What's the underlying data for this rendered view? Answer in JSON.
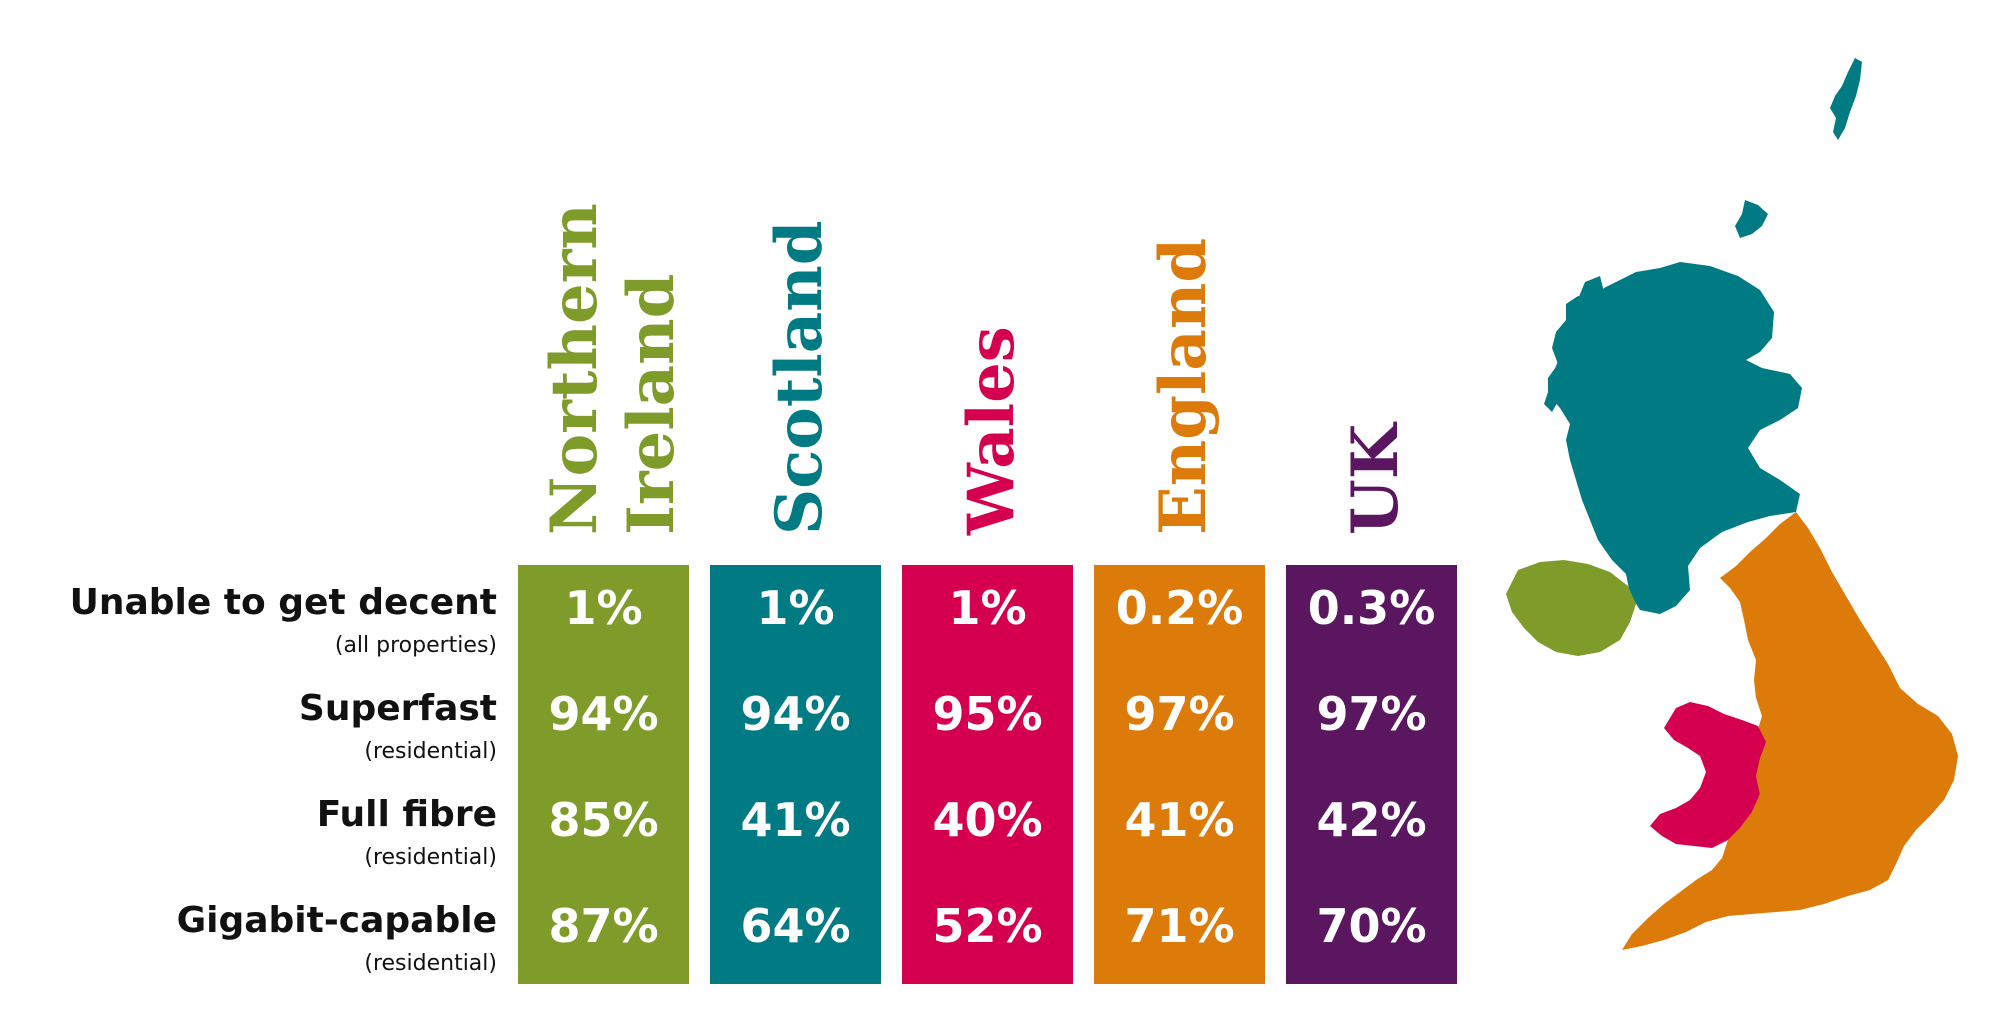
{
  "colors": {
    "northern_ireland": "#7f9c2a",
    "scotland": "#007a83",
    "wales": "#d4004f",
    "england": "#dd7b0a",
    "uk": "#5b1660"
  },
  "chart_data": {
    "type": "table",
    "columns": [
      "Northern Ireland",
      "Scotland",
      "Wales",
      "England",
      "UK"
    ],
    "rows": [
      {
        "label": "Unable to get decent",
        "sublabel": "(all properties)",
        "values": [
          "1%",
          "1%",
          "1%",
          "0.2%",
          "0.3%"
        ]
      },
      {
        "label": "Superfast",
        "sublabel": "(residential)",
        "values": [
          "94%",
          "94%",
          "95%",
          "97%",
          "97%"
        ]
      },
      {
        "label": "Full fibre",
        "sublabel": "(residential)",
        "values": [
          "85%",
          "41%",
          "40%",
          "41%",
          "42%"
        ]
      },
      {
        "label": "Gigabit-capable",
        "sublabel": "(residential)",
        "values": [
          "87%",
          "64%",
          "52%",
          "71%",
          "70%"
        ]
      }
    ]
  },
  "headers": {
    "northern_ireland_line1": "Northern",
    "northern_ireland_line2": "Ireland",
    "scotland": "Scotland",
    "wales": "Wales",
    "england": "England",
    "uk": "UK"
  },
  "map": {
    "regions": [
      "scotland",
      "northern_ireland",
      "england",
      "wales"
    ]
  }
}
